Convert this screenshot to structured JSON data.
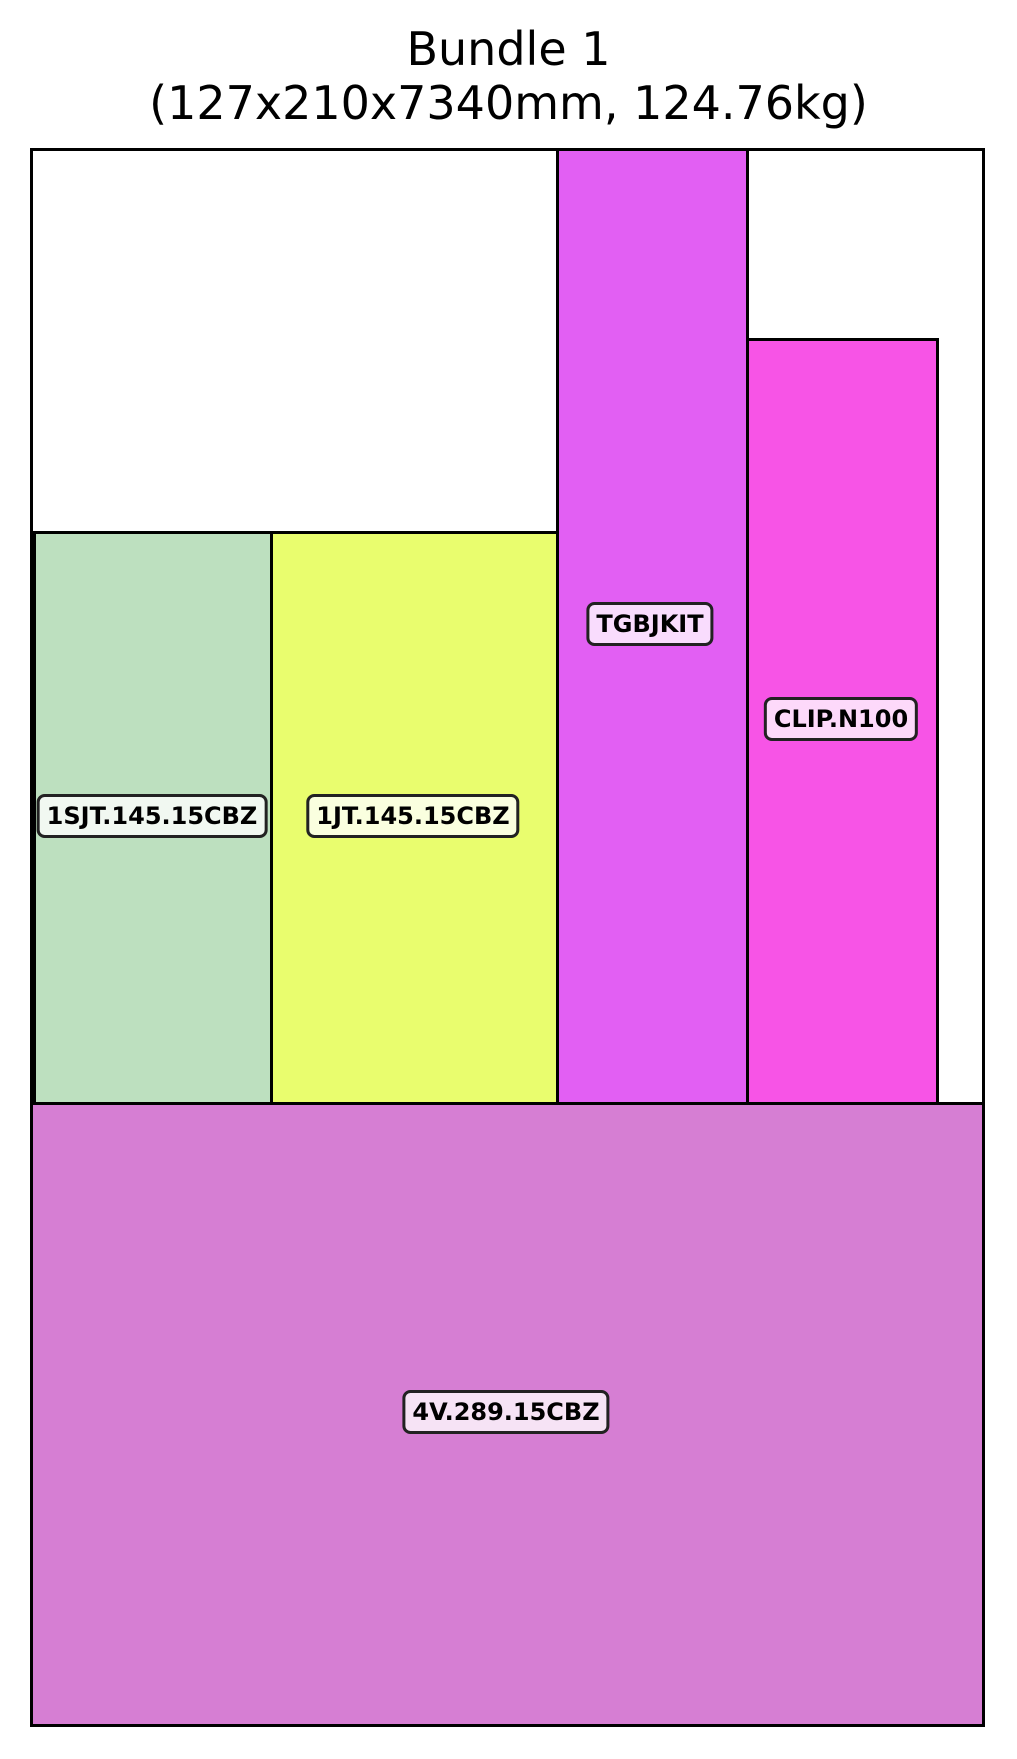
{
  "title": {
    "line1": "Bundle 1",
    "line2": "(127x210x7340mm, 124.76kg)"
  },
  "items": [
    {
      "label": "1SJT.145.15CBZ",
      "color": "#bde0bf"
    },
    {
      "label": "1JT.145.15CBZ",
      "color": "#e9fd6e"
    },
    {
      "label": "TGBJKIT",
      "color": "#e25ff3"
    },
    {
      "label": "CLIP.N100",
      "color": "#f754e6"
    },
    {
      "label": "4V.289.15CBZ",
      "color": "#d67ed3"
    }
  ]
}
